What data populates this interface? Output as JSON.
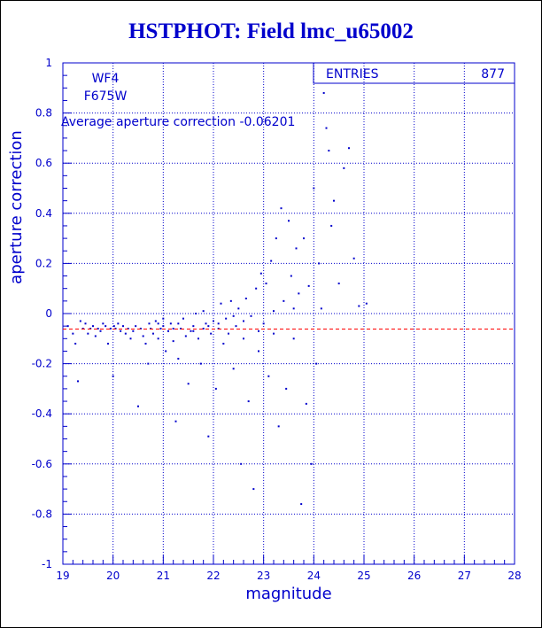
{
  "title": "HSTPHOT: Field lmc_u65002",
  "chart_data": {
    "type": "scatter",
    "xlabel": "magnitude",
    "ylabel": "aperture correction",
    "xlim": [
      19,
      28
    ],
    "ylim": [
      -1,
      1
    ],
    "xticks": [
      "19",
      "20",
      "21",
      "22",
      "23",
      "24",
      "25",
      "26",
      "27",
      "28"
    ],
    "yticks": [
      "-1",
      "-0.8",
      "-0.6",
      "-0.4",
      "-0.2",
      "0",
      "0.2",
      "0.4",
      "0.6",
      "0.8",
      "1"
    ],
    "grid": true,
    "chip": "WF4",
    "filter": "F675W",
    "average_label": "Average aperture correction -0.06201",
    "average_value": -0.06201,
    "stats": {
      "label": "ENTRIES",
      "value": "877"
    },
    "colors": {
      "points": "#0000cc",
      "average_line": "#ff0000",
      "text": "#0000cc"
    },
    "points": [
      [
        19.1,
        -0.05
      ],
      [
        19.2,
        -0.08
      ],
      [
        19.25,
        -0.12
      ],
      [
        19.3,
        -0.27
      ],
      [
        19.35,
        -0.03
      ],
      [
        19.4,
        -0.06
      ],
      [
        19.45,
        -0.04
      ],
      [
        19.5,
        -0.08
      ],
      [
        19.55,
        -0.06
      ],
      [
        19.6,
        -0.05
      ],
      [
        19.65,
        -0.09
      ],
      [
        19.7,
        -0.06
      ],
      [
        19.75,
        -0.07
      ],
      [
        19.8,
        -0.04
      ],
      [
        19.85,
        -0.05
      ],
      [
        19.9,
        -0.12
      ],
      [
        19.95,
        -0.06
      ],
      [
        20.0,
        -0.25
      ],
      [
        20.02,
        -0.05
      ],
      [
        20.05,
        -0.06
      ],
      [
        20.1,
        -0.04
      ],
      [
        20.15,
        -0.07
      ],
      [
        20.2,
        -0.05
      ],
      [
        20.25,
        -0.08
      ],
      [
        20.3,
        -0.06
      ],
      [
        20.35,
        -0.1
      ],
      [
        20.4,
        -0.07
      ],
      [
        20.45,
        -0.05
      ],
      [
        20.5,
        -0.37
      ],
      [
        20.55,
        -0.06
      ],
      [
        20.6,
        -0.09
      ],
      [
        20.65,
        -0.12
      ],
      [
        20.7,
        -0.2
      ],
      [
        20.72,
        -0.04
      ],
      [
        20.75,
        -0.06
      ],
      [
        20.8,
        -0.08
      ],
      [
        20.85,
        -0.03
      ],
      [
        20.9,
        -0.1
      ],
      [
        20.95,
        -0.06
      ],
      [
        21.0,
        -0.05
      ],
      [
        21.05,
        -0.15
      ],
      [
        21.1,
        -0.07
      ],
      [
        21.15,
        -0.04
      ],
      [
        21.2,
        -0.11
      ],
      [
        21.25,
        -0.43
      ],
      [
        21.3,
        -0.18
      ],
      [
        21.35,
        -0.06
      ],
      [
        21.4,
        -0.02
      ],
      [
        21.45,
        -0.09
      ],
      [
        21.5,
        -0.28
      ],
      [
        21.55,
        -0.07
      ],
      [
        21.6,
        -0.05
      ],
      [
        21.65,
        0.0
      ],
      [
        21.7,
        -0.1
      ],
      [
        21.75,
        -0.2
      ],
      [
        21.8,
        -0.06
      ],
      [
        21.85,
        -0.04
      ],
      [
        21.9,
        -0.49
      ],
      [
        21.95,
        -0.08
      ],
      [
        22.0,
        -0.03
      ],
      [
        22.05,
        -0.3
      ],
      [
        22.1,
        -0.06
      ],
      [
        22.15,
        0.04
      ],
      [
        22.2,
        -0.12
      ],
      [
        22.25,
        -0.02
      ],
      [
        22.3,
        -0.08
      ],
      [
        22.35,
        0.05
      ],
      [
        22.4,
        -0.22
      ],
      [
        22.45,
        -0.05
      ],
      [
        22.5,
        0.02
      ],
      [
        22.55,
        -0.6
      ],
      [
        22.6,
        -0.1
      ],
      [
        22.65,
        0.06
      ],
      [
        22.7,
        -0.35
      ],
      [
        22.75,
        -0.01
      ],
      [
        22.8,
        -0.7
      ],
      [
        22.85,
        0.1
      ],
      [
        22.9,
        -0.15
      ],
      [
        22.95,
        0.16
      ],
      [
        23.0,
        -0.04
      ],
      [
        23.05,
        0.12
      ],
      [
        23.1,
        -0.25
      ],
      [
        23.15,
        0.21
      ],
      [
        23.2,
        -0.08
      ],
      [
        23.25,
        0.3
      ],
      [
        23.3,
        -0.45
      ],
      [
        23.35,
        0.42
      ],
      [
        23.4,
        0.05
      ],
      [
        23.45,
        -0.3
      ],
      [
        23.5,
        0.37
      ],
      [
        23.55,
        0.15
      ],
      [
        23.6,
        -0.1
      ],
      [
        23.65,
        0.26
      ],
      [
        23.7,
        0.08
      ],
      [
        23.75,
        -0.76
      ],
      [
        23.8,
        0.3
      ],
      [
        23.85,
        -0.36
      ],
      [
        23.9,
        0.11
      ],
      [
        23.95,
        -0.6
      ],
      [
        24.0,
        0.5
      ],
      [
        24.05,
        -0.2
      ],
      [
        24.1,
        0.2
      ],
      [
        24.15,
        0.02
      ],
      [
        24.2,
        0.88
      ],
      [
        24.25,
        0.74
      ],
      [
        24.3,
        0.65
      ],
      [
        24.35,
        0.35
      ],
      [
        24.4,
        0.45
      ],
      [
        24.5,
        0.12
      ],
      [
        24.6,
        0.58
      ],
      [
        24.7,
        0.66
      ],
      [
        24.8,
        0.22
      ],
      [
        24.9,
        0.03
      ],
      [
        25.05,
        0.04
      ],
      [
        21.0,
        -0.02
      ],
      [
        21.3,
        -0.04
      ],
      [
        21.6,
        -0.07
      ],
      [
        21.9,
        -0.05
      ],
      [
        22.1,
        -0.04
      ],
      [
        22.4,
        -0.01
      ],
      [
        21.8,
        0.01
      ],
      [
        21.2,
        -0.06
      ],
      [
        20.9,
        -0.04
      ],
      [
        22.6,
        -0.03
      ],
      [
        23.2,
        0.01
      ],
      [
        23.6,
        0.02
      ],
      [
        22.9,
        -0.07
      ]
    ]
  }
}
